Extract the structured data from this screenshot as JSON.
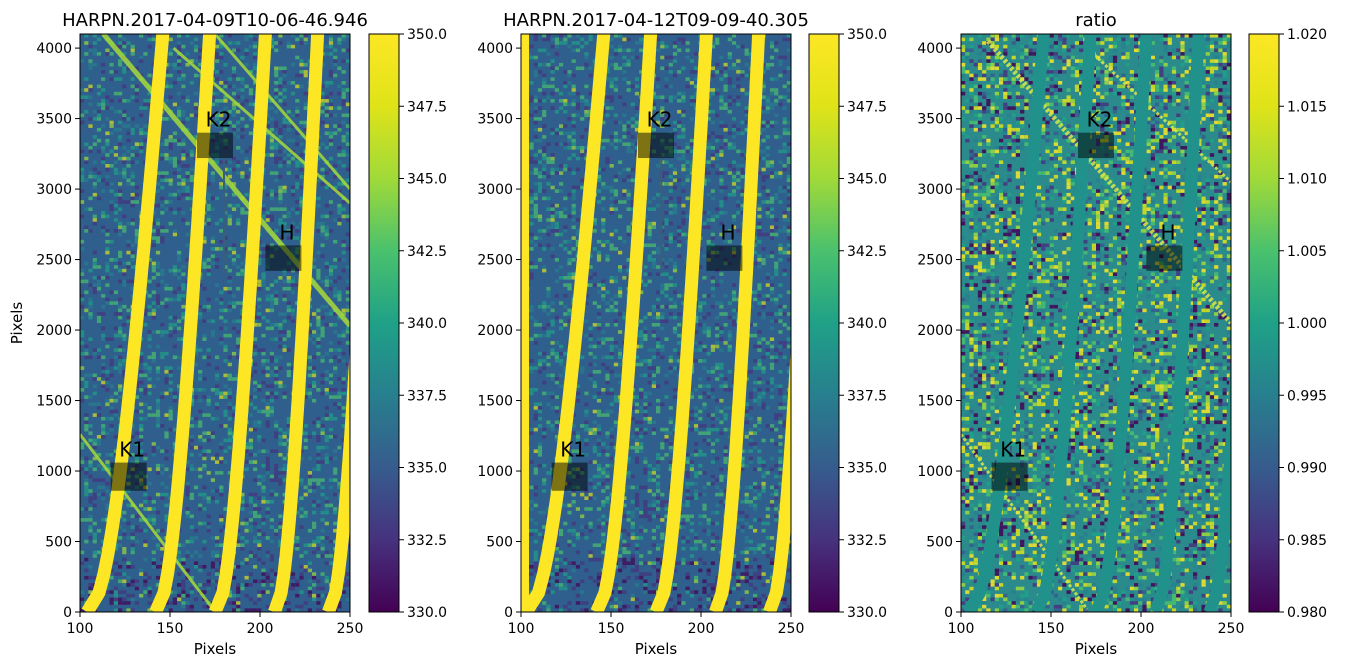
{
  "chart_data": [
    {
      "type": "heatmap",
      "title": "HARPN.2017-04-09T10-06-46.946",
      "xlabel": "Pixels",
      "ylabel": "Pixels",
      "xlim": [
        100,
        250
      ],
      "ylim": [
        0,
        4100
      ],
      "xticks": [
        100,
        150,
        200,
        250
      ],
      "yticks": [
        0,
        500,
        1000,
        1500,
        2000,
        2500,
        3000,
        3500,
        4000
      ],
      "colormap": "viridis",
      "colorbar": {
        "range": [
          330.0,
          350.0
        ],
        "ticks": [
          "330.0",
          "332.5",
          "335.0",
          "337.5",
          "340.0",
          "342.5",
          "345.0",
          "347.5",
          "350.0"
        ]
      },
      "regions": [
        {
          "label": "K2",
          "x": [
            165,
            185
          ],
          "y": [
            3220,
            3400
          ]
        },
        {
          "label": "H",
          "x": [
            203,
            223
          ],
          "y": [
            2420,
            2600
          ]
        },
        {
          "label": "K1",
          "x": [
            117,
            137
          ],
          "y": [
            860,
            1060
          ]
        }
      ],
      "orders": [
        {
          "x_bottom": 104,
          "x_top": 146
        },
        {
          "x_bottom": 142,
          "x_top": 172
        },
        {
          "x_bottom": 175,
          "x_top": 203
        },
        {
          "x_bottom": 208,
          "x_top": 232
        },
        {
          "x_bottom": 238,
          "x_top": 263
        }
      ],
      "diagonal_streaks": true,
      "gap_line": {
        "x": 180,
        "y": [
          2400,
          3250
        ]
      }
    },
    {
      "type": "heatmap",
      "title": "HARPN.2017-04-12T09-09-40.305",
      "xlabel": "Pixels",
      "ylabel": "",
      "xlim": [
        100,
        250
      ],
      "ylim": [
        0,
        4100
      ],
      "xticks": [
        100,
        150,
        200,
        250
      ],
      "yticks": [
        0,
        500,
        1000,
        1500,
        2000,
        2500,
        3000,
        3500,
        4000
      ],
      "colormap": "viridis",
      "colorbar": {
        "range": [
          330.0,
          350.0
        ],
        "ticks": [
          "330.0",
          "332.5",
          "335.0",
          "337.5",
          "340.0",
          "342.5",
          "345.0",
          "347.5",
          "350.0"
        ]
      },
      "regions": [
        {
          "label": "K2",
          "x": [
            165,
            185
          ],
          "y": [
            3220,
            3400
          ]
        },
        {
          "label": "H",
          "x": [
            203,
            223
          ],
          "y": [
            2420,
            2600
          ]
        },
        {
          "label": "K1",
          "x": [
            117,
            137
          ],
          "y": [
            860,
            1060
          ]
        }
      ],
      "orders": [
        {
          "x_bottom": 103,
          "x_top": 146
        },
        {
          "x_bottom": 142,
          "x_top": 172
        },
        {
          "x_bottom": 175,
          "x_top": 203
        },
        {
          "x_bottom": 208,
          "x_top": 232
        },
        {
          "x_bottom": 238,
          "x_top": 263
        }
      ],
      "diagonal_streaks": false,
      "gap_line": {
        "x": 178,
        "y": [
          2400,
          3250
        ]
      }
    },
    {
      "type": "heatmap",
      "title": "ratio",
      "xlabel": "Pixels",
      "ylabel": "",
      "xlim": [
        100,
        250
      ],
      "ylim": [
        0,
        4100
      ],
      "xticks": [
        100,
        150,
        200,
        250
      ],
      "yticks": [
        0,
        500,
        1000,
        1500,
        2000,
        2500,
        3000,
        3500,
        4000
      ],
      "colormap": "viridis",
      "colorbar": {
        "range": [
          0.98,
          1.02
        ],
        "ticks": [
          "0.980",
          "0.985",
          "0.990",
          "0.995",
          "1.000",
          "1.005",
          "1.010",
          "1.015",
          "1.020"
        ]
      },
      "regions": [
        {
          "label": "K2",
          "x": [
            165,
            185
          ],
          "y": [
            3220,
            3400
          ]
        },
        {
          "label": "H",
          "x": [
            203,
            223
          ],
          "y": [
            2420,
            2600
          ]
        },
        {
          "label": "K1",
          "x": [
            117,
            137
          ],
          "y": [
            860,
            1060
          ]
        }
      ],
      "orders": [
        {
          "x_bottom": 104,
          "x_top": 146
        },
        {
          "x_bottom": 142,
          "x_top": 172
        },
        {
          "x_bottom": 175,
          "x_top": 203
        },
        {
          "x_bottom": 208,
          "x_top": 232
        },
        {
          "x_bottom": 238,
          "x_top": 263
        }
      ],
      "diagonal_streaks": true
    }
  ]
}
